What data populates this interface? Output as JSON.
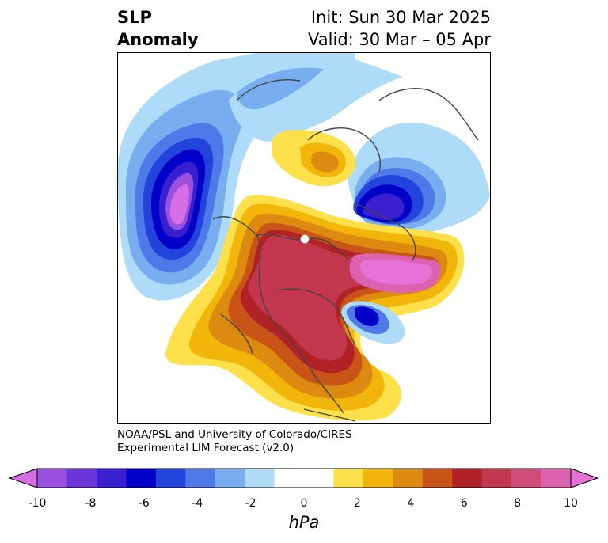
{
  "title": {
    "left_line1": "SLP",
    "left_line2": "Anomaly",
    "init": "Init: Sun 30 Mar 2025",
    "valid": "Valid: 30 Mar – 05 Apr"
  },
  "credit": {
    "line1": "NOAA/PSL and University of Colorado/CIRES",
    "line2": "Experimental LIM Forecast (v2.0)"
  },
  "colorbar": {
    "label": "hPa",
    "ticks": [
      "-10",
      "-8",
      "-6",
      "-4",
      "-2",
      "0",
      "2",
      "4",
      "6",
      "8",
      "10"
    ],
    "colors": [
      "#d66ee6",
      "#9b51e0",
      "#6a35d9",
      "#3a1fd0",
      "#0000c8",
      "#2244dd",
      "#4f78e8",
      "#78aef0",
      "#aedcf8",
      "#ffffff",
      "#ffffff",
      "#fde04a",
      "#f2b50a",
      "#dd8a10",
      "#c85418",
      "#b02226",
      "#c2374e",
      "#d04c7a",
      "#dc62b0",
      "#e873d8"
    ]
  },
  "chart_data": {
    "type": "heatmap",
    "variable": "SLP Anomaly",
    "units": "hPa",
    "levels": [
      -10,
      -9,
      -8,
      -7,
      -6,
      -5,
      -4,
      -3,
      -2,
      -1,
      1,
      2,
      3,
      4,
      5,
      6,
      7,
      8,
      9,
      10
    ],
    "range": [
      -10,
      10
    ]
  }
}
